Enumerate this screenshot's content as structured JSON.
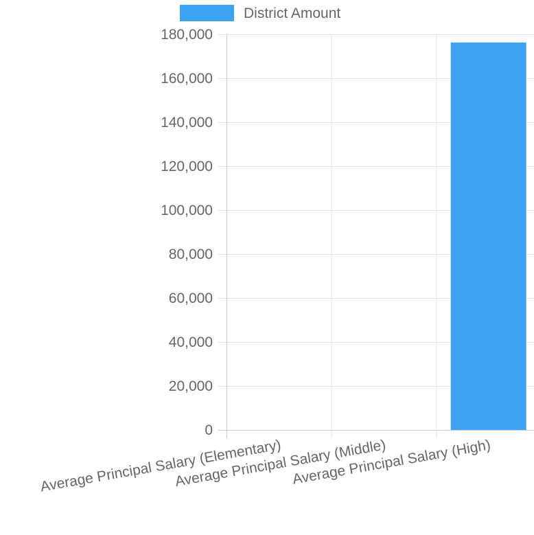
{
  "chart_data": {
    "type": "bar",
    "categories": [
      "Average Principal Salary (Elementary)",
      "Average Principal Salary (Middle)",
      "Average Principal Salary (High)"
    ],
    "series": [
      {
        "name": "District Amount",
        "color": "#3fa3f4",
        "values": [
          0,
          0,
          176300
        ]
      }
    ],
    "ylim": [
      0,
      180000
    ],
    "y_ticks": [
      0,
      20000,
      40000,
      60000,
      80000,
      100000,
      120000,
      140000,
      160000,
      180000
    ],
    "y_tick_labels": [
      "0",
      "20,000",
      "40,000",
      "60,000",
      "80,000",
      "100,000",
      "120,000",
      "140,000",
      "160,000",
      "180,000"
    ],
    "grid": true,
    "legend_position": "top"
  },
  "legend": {
    "label": "District Amount",
    "color": "#3fa3f4"
  },
  "colors": {
    "grid": "#e2e2e2",
    "axis": "#cccccc",
    "text": "#666666"
  }
}
